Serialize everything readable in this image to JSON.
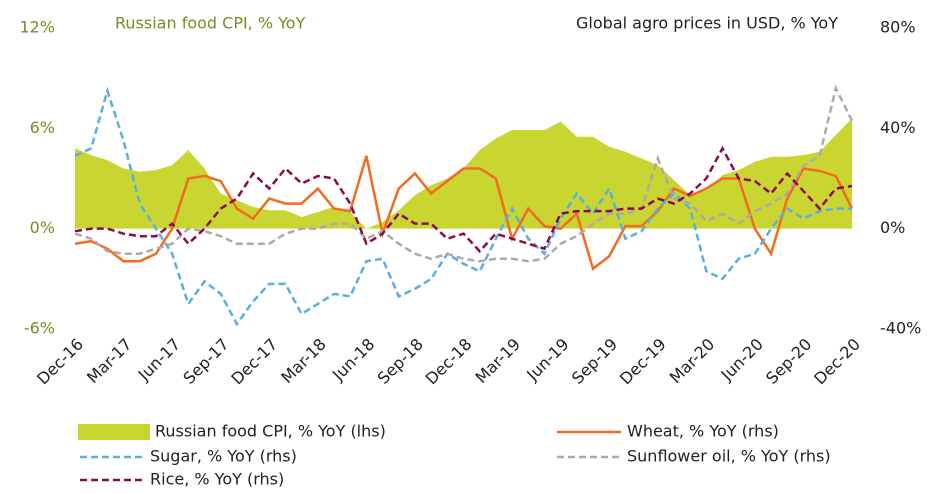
{
  "chart_data": {
    "type": "line",
    "title": "Russian food CPI, % YoY",
    "subtitle": "Global agro prices in USD, % YoY",
    "categories": [
      "Dec-16",
      null,
      null,
      "Mar-17",
      null,
      null,
      "Jun-17",
      null,
      null,
      "Sep-17",
      null,
      null,
      "Dec-17",
      null,
      null,
      "Mar-18",
      null,
      null,
      "Jun-18",
      null,
      null,
      "Sep-18",
      null,
      null,
      "Dec-18",
      null,
      null,
      "Mar-19",
      null,
      null,
      "Jun-19",
      null,
      null,
      "Sep-19",
      null,
      null,
      "Dec-19",
      null,
      null,
      "Mar-20",
      null,
      null,
      "Jun-20",
      null,
      null,
      "Sep-20",
      null,
      null,
      "Dec-20"
    ],
    "ylim": [
      -6,
      12
    ],
    "yticks": [
      {
        "value": -6,
        "label": "-6%"
      },
      {
        "value": 0,
        "label": "0%"
      },
      {
        "value": 6,
        "label": "6%"
      },
      {
        "value": 12,
        "label": "12%"
      }
    ],
    "y2lim": [
      -40,
      80
    ],
    "y2ticks": [
      {
        "value": -40,
        "label": "-40%"
      },
      {
        "value": 0,
        "label": "0%"
      },
      {
        "value": 40,
        "label": "40%"
      },
      {
        "value": 80,
        "label": "80%"
      }
    ],
    "grid": false,
    "legend": "bottom",
    "series": [
      {
        "name": "Russian food CPI, % YoY (lhs)",
        "type": "area",
        "color": "#c9d631",
        "values": [
          4.8,
          4.4,
          4.1,
          3.6,
          3.4,
          3.5,
          3.8,
          4.7,
          3.6,
          2.1,
          1.7,
          1.3,
          1.1,
          1.1,
          0.7,
          1.0,
          1.3,
          1.0,
          0.0,
          0.4,
          1.1,
          2.0,
          2.6,
          3.0,
          3.6,
          4.7,
          5.4,
          5.9,
          5.9,
          5.9,
          6.4,
          5.5,
          5.5,
          4.9,
          4.6,
          4.2,
          3.8,
          2.9,
          2.0,
          2.3,
          3.2,
          3.5,
          4.0,
          4.3,
          4.3,
          4.4,
          4.6,
          5.6,
          6.6
        ]
      },
      {
        "name": "Wheat, % YoY (rhs)",
        "type": "line",
        "axis": "y2",
        "color": "#f26b21",
        "dash": false,
        "values": [
          -6,
          -5,
          -8,
          -13,
          -13,
          -10,
          0,
          20,
          21,
          19,
          8,
          4,
          12,
          10,
          10,
          16,
          8,
          7,
          29,
          -2,
          16,
          22,
          14,
          19,
          24,
          24,
          20,
          -4,
          8,
          1,
          0,
          6,
          -16,
          -11,
          1,
          1,
          7,
          16,
          13,
          16,
          20,
          20,
          0,
          -10,
          12,
          24,
          23,
          21,
          8
        ]
      },
      {
        "name": "Sugar, % YoY (rhs)",
        "type": "line",
        "axis": "y2",
        "color": "#5aafe0",
        "dash": true,
        "values": [
          29,
          32,
          55,
          35,
          10,
          0,
          -10,
          -30,
          -21,
          -26,
          -38,
          -29,
          -22,
          -22,
          -34,
          -30,
          -26,
          -27,
          -13,
          -12,
          -27,
          -24,
          -20,
          -10,
          -14,
          -17,
          -4,
          8,
          -4,
          -10,
          4,
          14,
          6,
          16,
          -4,
          -1,
          8,
          14,
          8,
          -17,
          -20,
          -12,
          -10,
          0,
          8,
          4,
          7,
          8,
          8
        ]
      },
      {
        "name": "Sunflower oil, % YoY (rhs)",
        "type": "line",
        "axis": "y2",
        "color": "#aaaaaa",
        "dash": true,
        "values": [
          -2,
          -4,
          -9,
          -10,
          -10,
          -8,
          -6,
          0,
          -1,
          -3,
          -6,
          -6,
          -6,
          -2,
          0,
          0,
          2,
          2,
          -4,
          -1,
          -6,
          -10,
          -12,
          -10,
          -12,
          -13,
          -12,
          -12,
          -13,
          -12,
          -6,
          -3,
          2,
          6,
          6,
          8,
          28,
          12,
          10,
          3,
          6,
          2,
          7,
          10,
          14,
          25,
          29,
          56,
          43
        ]
      },
      {
        "name": "Rice, % YoY (rhs)",
        "type": "line",
        "axis": "y2",
        "color": "#8b0a50",
        "dash": true,
        "values": [
          -1,
          0,
          0,
          -2,
          -3,
          -3,
          2,
          -6,
          0,
          8,
          12,
          22,
          16,
          24,
          18,
          21,
          20,
          10,
          -6,
          -2,
          6,
          2,
          2,
          -4,
          -2,
          -9,
          -2,
          -4,
          -6,
          -8,
          6,
          7,
          7,
          7,
          8,
          8,
          12,
          10,
          14,
          20,
          32,
          20,
          19,
          14,
          22,
          15,
          8,
          16,
          17
        ]
      }
    ]
  }
}
